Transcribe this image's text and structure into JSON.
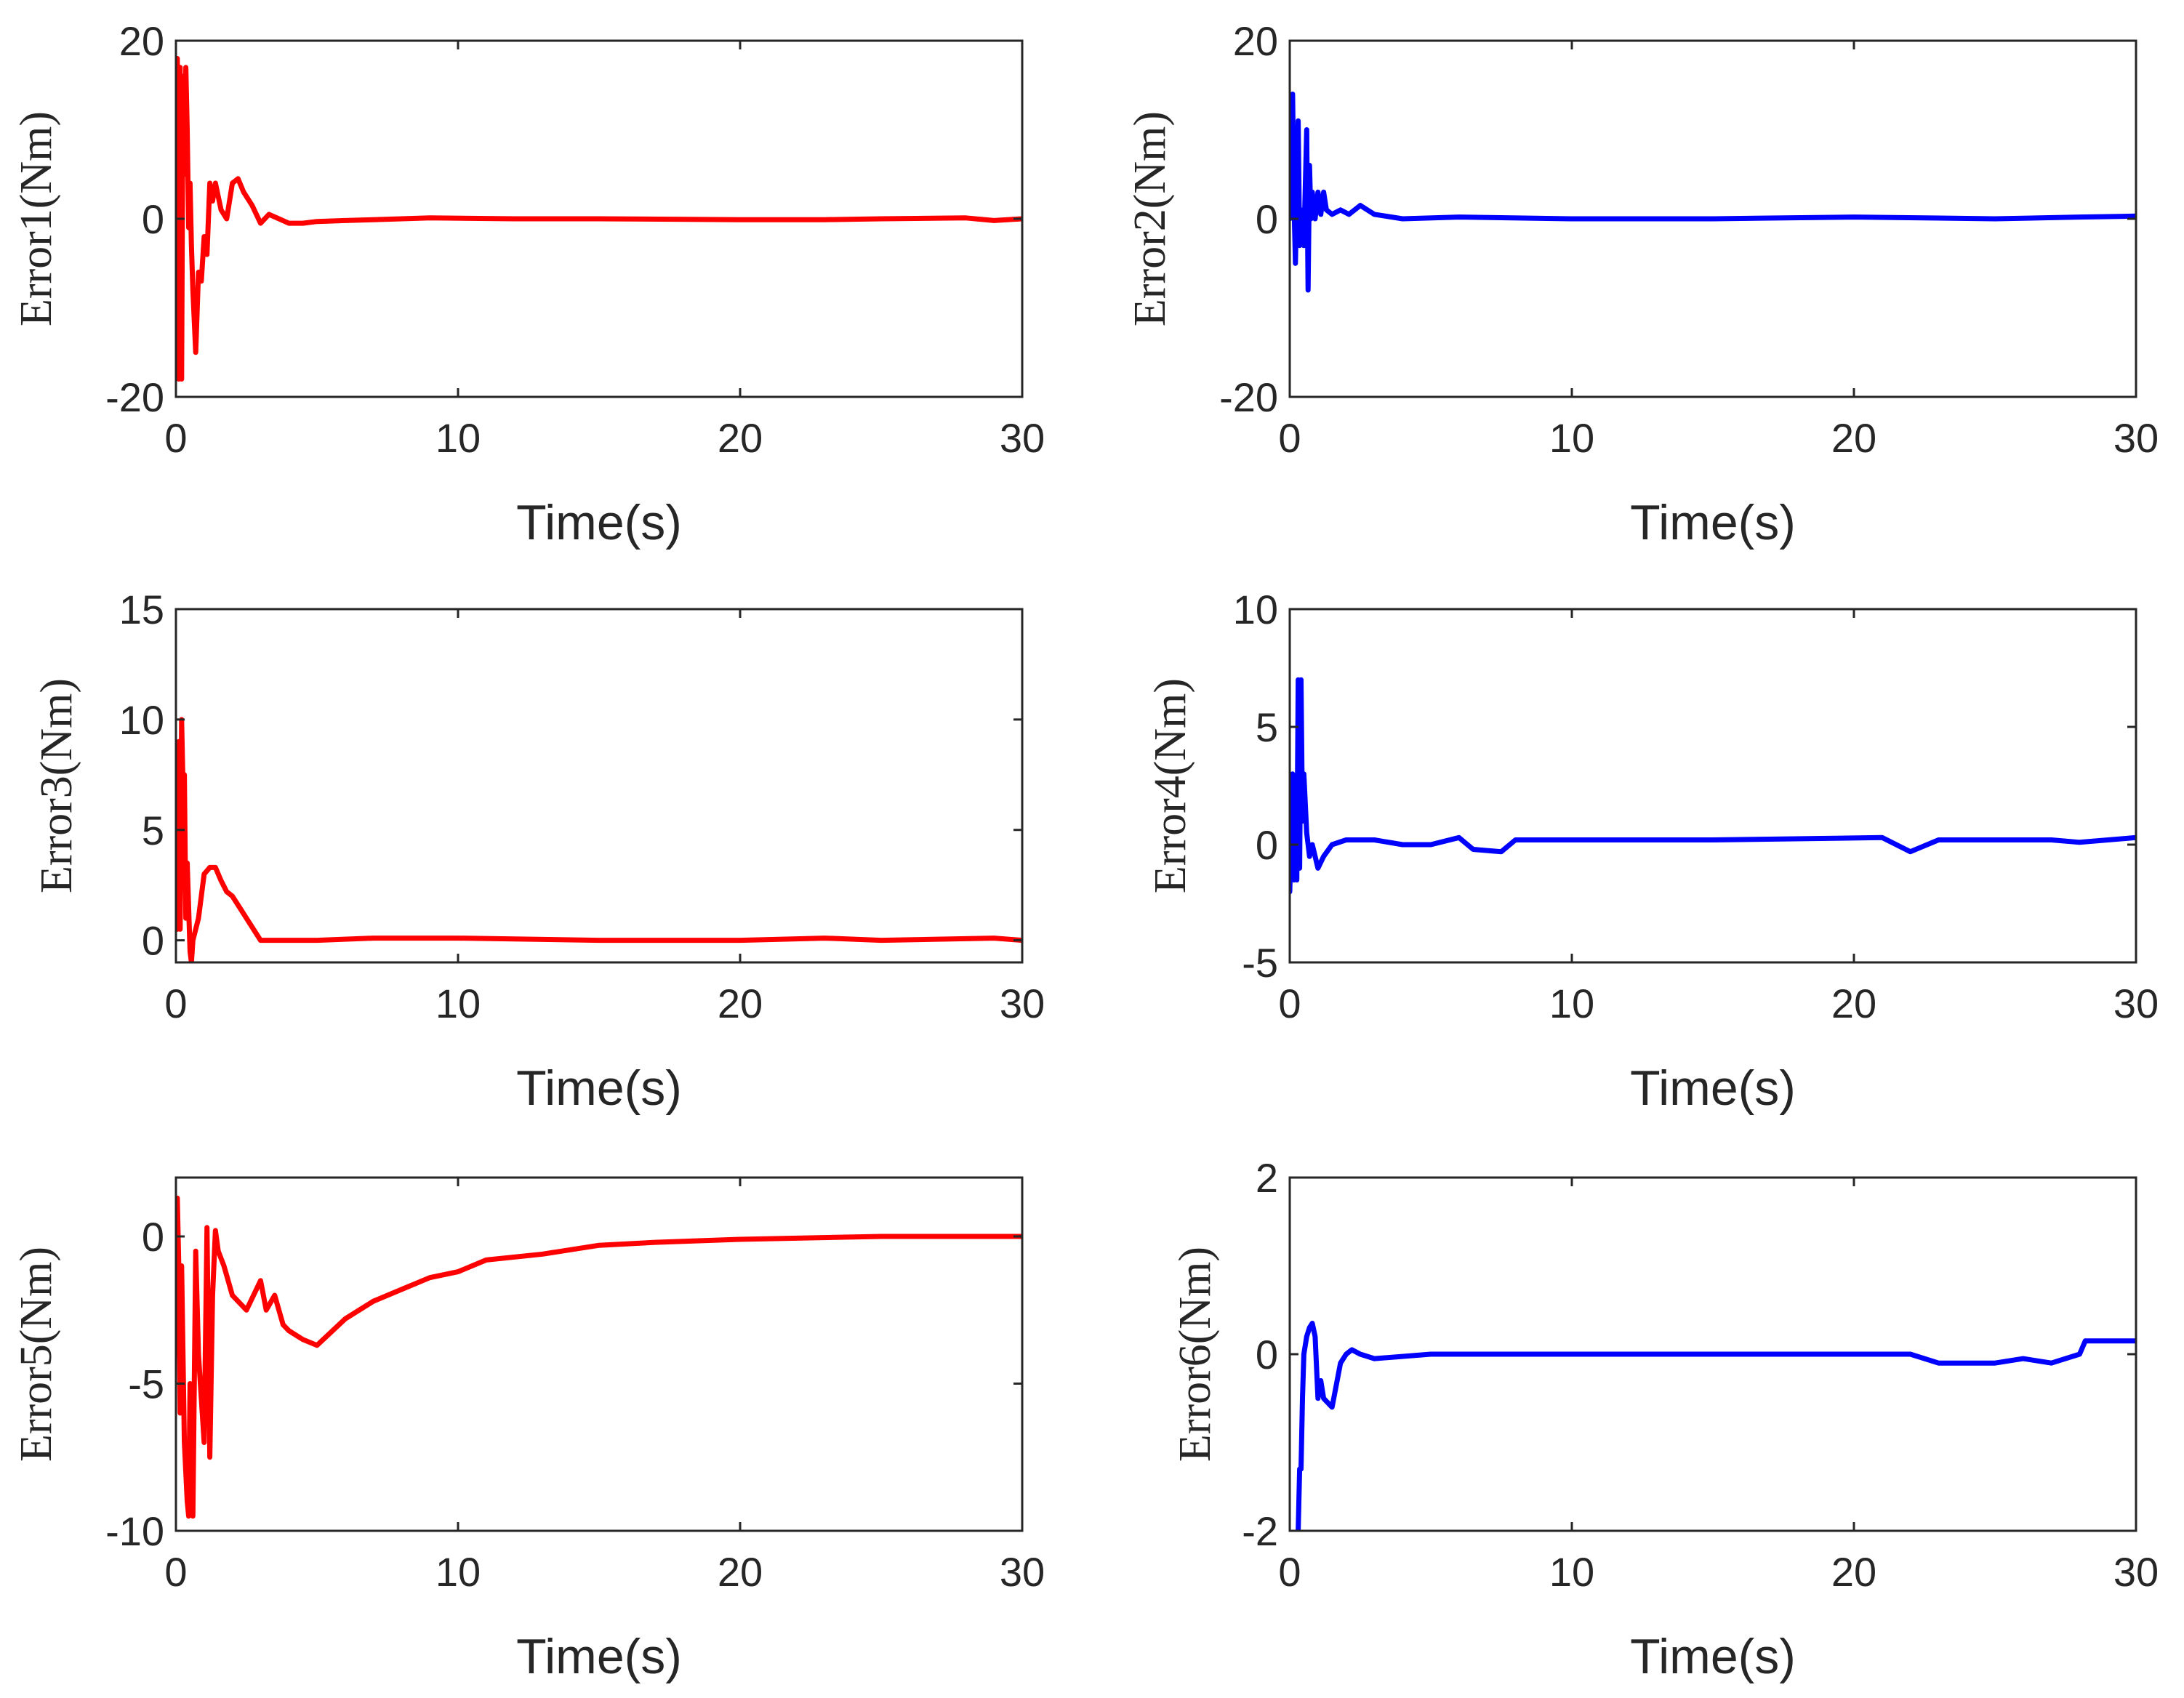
{
  "chart_data": [
    {
      "type": "line",
      "ylabel": "Error1(Nm)",
      "xlabel": "Time(s)",
      "xlim": [
        0,
        30
      ],
      "ylim": [
        -20,
        20
      ],
      "xticks": [
        0,
        10,
        20,
        30
      ],
      "yticks": [
        -20,
        0,
        20
      ],
      "xtick_labels": [
        "0",
        "10",
        "20",
        "30"
      ],
      "ytick_labels": [
        "-20",
        "0",
        "20"
      ],
      "color": "#ff0000",
      "series": [
        {
          "name": "Error1",
          "x": [
            0,
            0.05,
            0.1,
            0.15,
            0.2,
            0.25,
            0.3,
            0.35,
            0.4,
            0.45,
            0.5,
            0.55,
            0.6,
            0.7,
            0.8,
            0.9,
            1.0,
            1.1,
            1.2,
            1.3,
            1.4,
            1.6,
            1.8,
            2.0,
            2.2,
            2.4,
            2.7,
            3.0,
            3.3,
            4.0,
            4.5,
            5.0,
            6.0,
            7.0,
            9.0,
            12.0,
            15.0,
            20.0,
            23.0,
            25.0,
            28.0,
            29.0,
            30.0
          ],
          "y": [
            5,
            18,
            -18,
            17,
            -18,
            16,
            5,
            17,
            10,
            -1,
            4,
            -3,
            -8,
            -15,
            -6,
            -7,
            -2,
            -4,
            4,
            2,
            4,
            1,
            0,
            4,
            4.5,
            3,
            1.5,
            -0.5,
            0.5,
            -0.5,
            -0.5,
            -0.3,
            -0.2,
            -0.1,
            0.1,
            0,
            0,
            -0.1,
            -0.1,
            0,
            0.1,
            -0.2,
            0
          ]
        }
      ]
    },
    {
      "type": "line",
      "ylabel": "Error2(Nm)",
      "xlabel": "Time(s)",
      "xlim": [
        0,
        30
      ],
      "ylim": [
        -20,
        20
      ],
      "xticks": [
        0,
        10,
        20,
        30
      ],
      "yticks": [
        -20,
        0,
        20
      ],
      "xtick_labels": [
        "0",
        "10",
        "20",
        "30"
      ],
      "ytick_labels": [
        "-20",
        "0",
        "20"
      ],
      "color": "#0000ff",
      "series": [
        {
          "name": "Error2",
          "x": [
            0,
            0.1,
            0.15,
            0.2,
            0.3,
            0.35,
            0.4,
            0.5,
            0.6,
            0.65,
            0.7,
            0.75,
            0.8,
            0.9,
            1.0,
            1.1,
            1.2,
            1.3,
            1.5,
            1.8,
            2.1,
            2.5,
            3.0,
            4.0,
            6.0,
            10.0,
            15.0,
            20.0,
            25.0,
            28.0,
            30.0
          ],
          "y": [
            0,
            14,
            2,
            -5,
            11,
            -3,
            1,
            -3,
            10,
            -8,
            6,
            0,
            3,
            0,
            3,
            0.5,
            3,
            1,
            0.5,
            1,
            0.5,
            1.5,
            0.5,
            0,
            0.2,
            0,
            0,
            0.2,
            0,
            0.2,
            0.3
          ]
        }
      ]
    },
    {
      "type": "line",
      "ylabel": "Error3(Nm)",
      "xlabel": "Time(s)",
      "xlim": [
        0,
        30
      ],
      "ylim": [
        -1,
        15
      ],
      "xticks": [
        0,
        10,
        20,
        30
      ],
      "yticks": [
        0,
        5,
        10,
        15
      ],
      "xtick_labels": [
        "0",
        "10",
        "20",
        "30"
      ],
      "ytick_labels": [
        "0",
        "5",
        "10",
        "15"
      ],
      "color": "#ff0000",
      "series": [
        {
          "name": "Error3",
          "x": [
            0.05,
            0.1,
            0.15,
            0.2,
            0.25,
            0.3,
            0.35,
            0.4,
            0.5,
            0.55,
            0.6,
            0.7,
            0.8,
            1.0,
            1.2,
            1.4,
            1.6,
            1.8,
            2.0,
            2.5,
            3.0,
            3.3,
            5.0,
            7.0,
            10.0,
            15.0,
            20.0,
            23.0,
            25.0,
            29.0,
            30.0
          ],
          "y": [
            0.5,
            9,
            0.5,
            10,
            7,
            7.5,
            1,
            3.5,
            -0.5,
            -1,
            0,
            0.5,
            1,
            3,
            3.3,
            3.3,
            2.7,
            2.2,
            2,
            1,
            0,
            0,
            0,
            0.1,
            0.1,
            0,
            0,
            0.1,
            0,
            0.1,
            0
          ]
        }
      ]
    },
    {
      "type": "line",
      "ylabel": "Error4(Nm)",
      "xlabel": "Time(s)",
      "xlim": [
        0,
        30
      ],
      "ylim": [
        -5,
        10
      ],
      "xticks": [
        0,
        10,
        20,
        30
      ],
      "yticks": [
        -5,
        0,
        5,
        10
      ],
      "xtick_labels": [
        "0",
        "10",
        "20",
        "30"
      ],
      "ytick_labels": [
        "-5",
        "0",
        "5",
        "10"
      ],
      "color": "#0000ff",
      "series": [
        {
          "name": "Error4",
          "x": [
            0,
            0.1,
            0.15,
            0.2,
            0.25,
            0.3,
            0.35,
            0.4,
            0.45,
            0.5,
            0.6,
            0.7,
            0.8,
            1.0,
            1.2,
            1.5,
            2.0,
            2.5,
            3.0,
            4.0,
            5.0,
            6.0,
            6.5,
            7.5,
            8.0,
            10.0,
            15.0,
            21.0,
            22.0,
            23.0,
            25.0,
            27.0,
            28.0,
            30.0
          ],
          "y": [
            -2,
            3,
            -1.5,
            2,
            -1.5,
            7,
            -1,
            7,
            1,
            3,
            0.5,
            -0.5,
            0,
            -1,
            -0.5,
            0,
            0.2,
            0.2,
            0.2,
            0,
            0,
            0.3,
            -0.2,
            -0.3,
            0.2,
            0.2,
            0.2,
            0.3,
            -0.3,
            0.2,
            0.2,
            0.2,
            0.1,
            0.3
          ]
        }
      ]
    },
    {
      "type": "line",
      "ylabel": "Error5(Nm)",
      "xlabel": "Time(s)",
      "xlim": [
        0,
        30
      ],
      "ylim": [
        -10,
        2
      ],
      "xticks": [
        0,
        10,
        20,
        30
      ],
      "yticks": [
        -10,
        -5,
        0
      ],
      "xtick_labels": [
        "0",
        "10",
        "20",
        "30"
      ],
      "ytick_labels": [
        "-10",
        "-5",
        "0"
      ],
      "color": "#ff0000",
      "series": [
        {
          "name": "Error5",
          "x": [
            0,
            0.05,
            0.1,
            0.15,
            0.2,
            0.3,
            0.4,
            0.45,
            0.5,
            0.6,
            0.7,
            0.8,
            1.0,
            1.1,
            1.2,
            1.3,
            1.4,
            1.5,
            1.7,
            2.0,
            2.5,
            3.0,
            3.2,
            3.5,
            3.8,
            4.0,
            4.5,
            5.0,
            6.0,
            7.0,
            8.0,
            9.0,
            10.0,
            11.0,
            13.0,
            15.0,
            17.0,
            20.0,
            25.0,
            30.0
          ],
          "y": [
            -4,
            1.3,
            -1,
            -6,
            -1,
            -7,
            -9,
            -9.5,
            -5,
            -9.5,
            -0.5,
            -4,
            -7,
            0.3,
            -7.5,
            -2,
            0.2,
            -0.5,
            -1,
            -2,
            -2.5,
            -1.5,
            -2.5,
            -2,
            -3,
            -3.2,
            -3.5,
            -3.7,
            -2.8,
            -2.2,
            -1.8,
            -1.4,
            -1.2,
            -0.8,
            -0.6,
            -0.3,
            -0.2,
            -0.1,
            0,
            0
          ]
        }
      ]
    },
    {
      "type": "line",
      "ylabel": "Error6(Nm)",
      "xlabel": "Time(s)",
      "xlim": [
        0,
        30
      ],
      "ylim": [
        -2,
        2
      ],
      "xticks": [
        0,
        10,
        20,
        30
      ],
      "yticks": [
        -2,
        0,
        2
      ],
      "xtick_labels": [
        "0",
        "10",
        "20",
        "30"
      ],
      "ytick_labels": [
        "-2",
        "0",
        "2"
      ],
      "color": "#0000ff",
      "series": [
        {
          "name": "Error6",
          "x": [
            0.3,
            0.35,
            0.4,
            0.45,
            0.5,
            0.6,
            0.7,
            0.8,
            0.9,
            1.0,
            1.1,
            1.2,
            1.5,
            1.8,
            2.0,
            2.2,
            2.5,
            3.0,
            5.0,
            8.0,
            10.0,
            15.0,
            20.0,
            22.0,
            23.0,
            25.0,
            26.0,
            27.0,
            28.0,
            28.2,
            30.0
          ],
          "y": [
            -2,
            -1.3,
            -1.3,
            -0.5,
            0,
            0.2,
            0.3,
            0.35,
            0.2,
            -0.5,
            -0.3,
            -0.5,
            -0.6,
            -0.1,
            0,
            0.05,
            0,
            -0.05,
            0,
            0,
            0,
            0,
            0,
            0,
            -0.1,
            -0.1,
            -0.05,
            -0.1,
            0,
            0.15,
            0.15
          ]
        }
      ]
    }
  ]
}
